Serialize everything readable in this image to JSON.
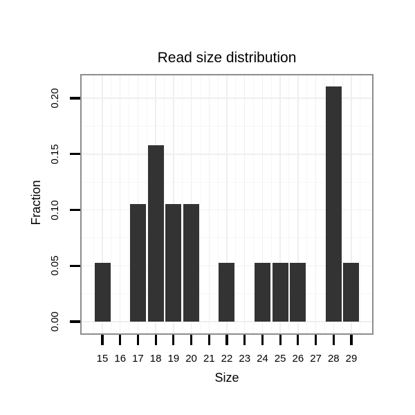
{
  "chart_data": {
    "type": "bar",
    "title": "Read size distribution",
    "xlabel": "Size",
    "ylabel": "Fraction",
    "categories": [
      15,
      16,
      17,
      18,
      19,
      20,
      21,
      22,
      23,
      24,
      25,
      26,
      27,
      28,
      29
    ],
    "values": [
      0.0526,
      0,
      0.1053,
      0.1579,
      0.1053,
      0.1053,
      0,
      0.0526,
      0,
      0.0526,
      0.0526,
      0.0526,
      0,
      0.2105,
      0.0526
    ],
    "y_ticks": {
      "labels": [
        "0.00",
        "0.05",
        "0.10",
        "0.15",
        "0.20"
      ],
      "values": [
        0,
        0.05,
        0.1,
        0.15,
        0.2
      ]
    },
    "ylim": [
      0,
      0.22
    ],
    "grid": "major+minor horizontal and vertical, on",
    "legend": "none",
    "colors": {
      "bar": "#333333",
      "panel_border": "#8c8c8c",
      "grid_major": "#efefef",
      "grid_minor": "#f6f6f6",
      "axis_tick": "#000000",
      "text": "#000000",
      "background": "#ffffff"
    }
  }
}
